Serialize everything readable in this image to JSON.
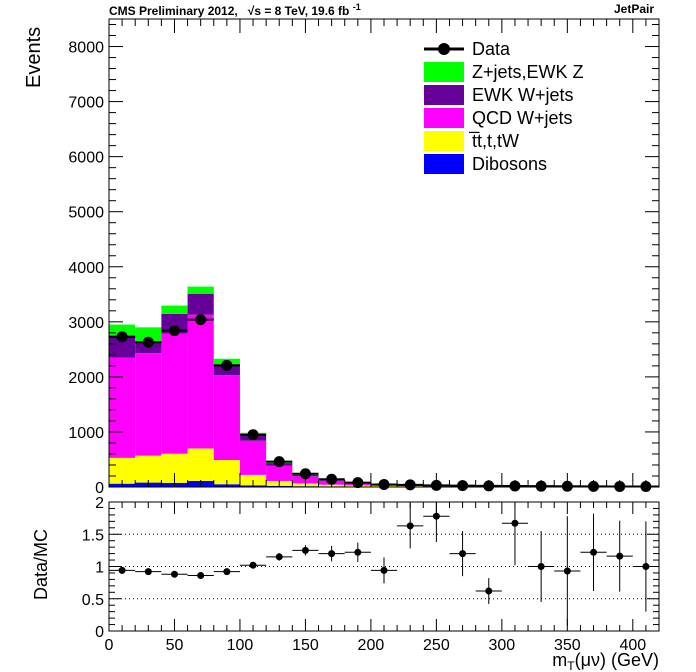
{
  "header": {
    "left": "CMS Preliminary 2012,   √s = 8 TeV, 19.6 fb  -1",
    "right": "JetPair"
  },
  "colors": {
    "zjets": "#00ff00",
    "ewkw": "#660099",
    "qcdw": "#ff00ff",
    "ttbar": "#ffff00",
    "diboson": "#0000ff",
    "data": "#000000"
  },
  "chart_data": [
    {
      "type": "bar",
      "stacked": true,
      "ylabel": "Events",
      "ylim": [
        0,
        8500
      ],
      "xlim": [
        0,
        420
      ],
      "yticks": [
        0,
        1000,
        2000,
        3000,
        4000,
        5000,
        6000,
        7000,
        8000
      ],
      "xticks": [
        0,
        50,
        100,
        150,
        200,
        250,
        300,
        350,
        400
      ],
      "bin_edges": [
        0,
        20,
        40,
        60,
        80,
        100,
        120,
        140,
        160,
        180,
        200,
        220,
        240,
        260,
        280,
        300,
        320,
        340,
        360,
        380,
        400,
        420
      ],
      "legend": {
        "placement": "top-right",
        "entries": [
          "Data",
          "Z+jets,EWK Z",
          "EWK W+jets",
          "QCD W+jets",
          "t̅t,t,tW",
          "Dibosons"
        ]
      },
      "series": [
        {
          "name": "Dibosons",
          "key": "diboson",
          "values": [
            60,
            80,
            75,
            110,
            50,
            30,
            20,
            15,
            12,
            10,
            8,
            6,
            5,
            4,
            3,
            3,
            2,
            2,
            2,
            1,
            1
          ]
        },
        {
          "name": "t̅t,t,tW",
          "key": "ttbar",
          "values": [
            470,
            490,
            530,
            590,
            440,
            190,
            90,
            50,
            30,
            20,
            14,
            10,
            8,
            6,
            5,
            4,
            3,
            3,
            2,
            2,
            2
          ]
        },
        {
          "name": "QCD W+jets",
          "key": "qcdw",
          "values": [
            1820,
            1860,
            2180,
            2430,
            1540,
            620,
            280,
            130,
            70,
            40,
            25,
            16,
            10,
            8,
            6,
            5,
            4,
            3,
            3,
            2,
            2
          ]
        },
        {
          "name": "EWK W+jets",
          "key": "ewkw",
          "values": [
            400,
            210,
            360,
            380,
            200,
            95,
            45,
            25,
            16,
            10,
            7,
            5,
            4,
            3,
            2,
            2,
            2,
            1,
            1,
            1,
            1
          ]
        },
        {
          "name": "Z+jets,EWK Z",
          "key": "zjets",
          "values": [
            200,
            260,
            150,
            130,
            100,
            50,
            25,
            12,
            6,
            4,
            3,
            2,
            2,
            1,
            1,
            1,
            1,
            1,
            1,
            0,
            0
          ]
        }
      ],
      "data_points": {
        "name": "Data",
        "x": [
          10,
          30,
          50,
          70,
          90,
          110,
          130,
          150,
          170,
          190,
          210,
          230,
          250,
          270,
          290,
          310,
          330,
          350,
          370,
          390,
          410
        ],
        "y": [
          2730,
          2630,
          2840,
          3040,
          2210,
          950,
          460,
          240,
          140,
          80,
          45,
          38,
          30,
          25,
          20,
          18,
          15,
          13,
          12,
          10,
          9
        ]
      }
    },
    {
      "type": "scatter",
      "ylabel": "Data/MC",
      "xlabel": "m_T(μν) (GeV)",
      "xlabel_main": "m",
      "xlabel_sub": "T",
      "xlabel_rest": "(μν) (GeV)",
      "ylim": [
        0,
        2
      ],
      "xlim": [
        0,
        420
      ],
      "yticks": [
        0,
        0.5,
        1,
        1.5,
        2
      ],
      "ytick_labels": [
        "0",
        "0.5",
        "1",
        "1.5",
        "2"
      ],
      "xticks": [
        0,
        50,
        100,
        150,
        200,
        250,
        300,
        350,
        400
      ],
      "grid": "horizontal dotted",
      "x": [
        10,
        30,
        50,
        70,
        90,
        110,
        130,
        150,
        170,
        190,
        210,
        230,
        250,
        270,
        290,
        310,
        330,
        350,
        370,
        390,
        410
      ],
      "y": [
        0.94,
        0.92,
        0.88,
        0.86,
        0.92,
        1.02,
        1.15,
        1.25,
        1.2,
        1.22,
        0.94,
        1.63,
        1.78,
        1.2,
        0.62,
        1.67,
        1.0,
        0.93,
        1.22,
        1.16,
        1.0
      ],
      "err": [
        0.02,
        0.02,
        0.02,
        0.02,
        0.02,
        0.03,
        0.06,
        0.08,
        0.12,
        0.15,
        0.2,
        0.35,
        0.4,
        0.35,
        0.2,
        0.65,
        0.55,
        0.85,
        0.6,
        0.55,
        0.7
      ]
    }
  ]
}
